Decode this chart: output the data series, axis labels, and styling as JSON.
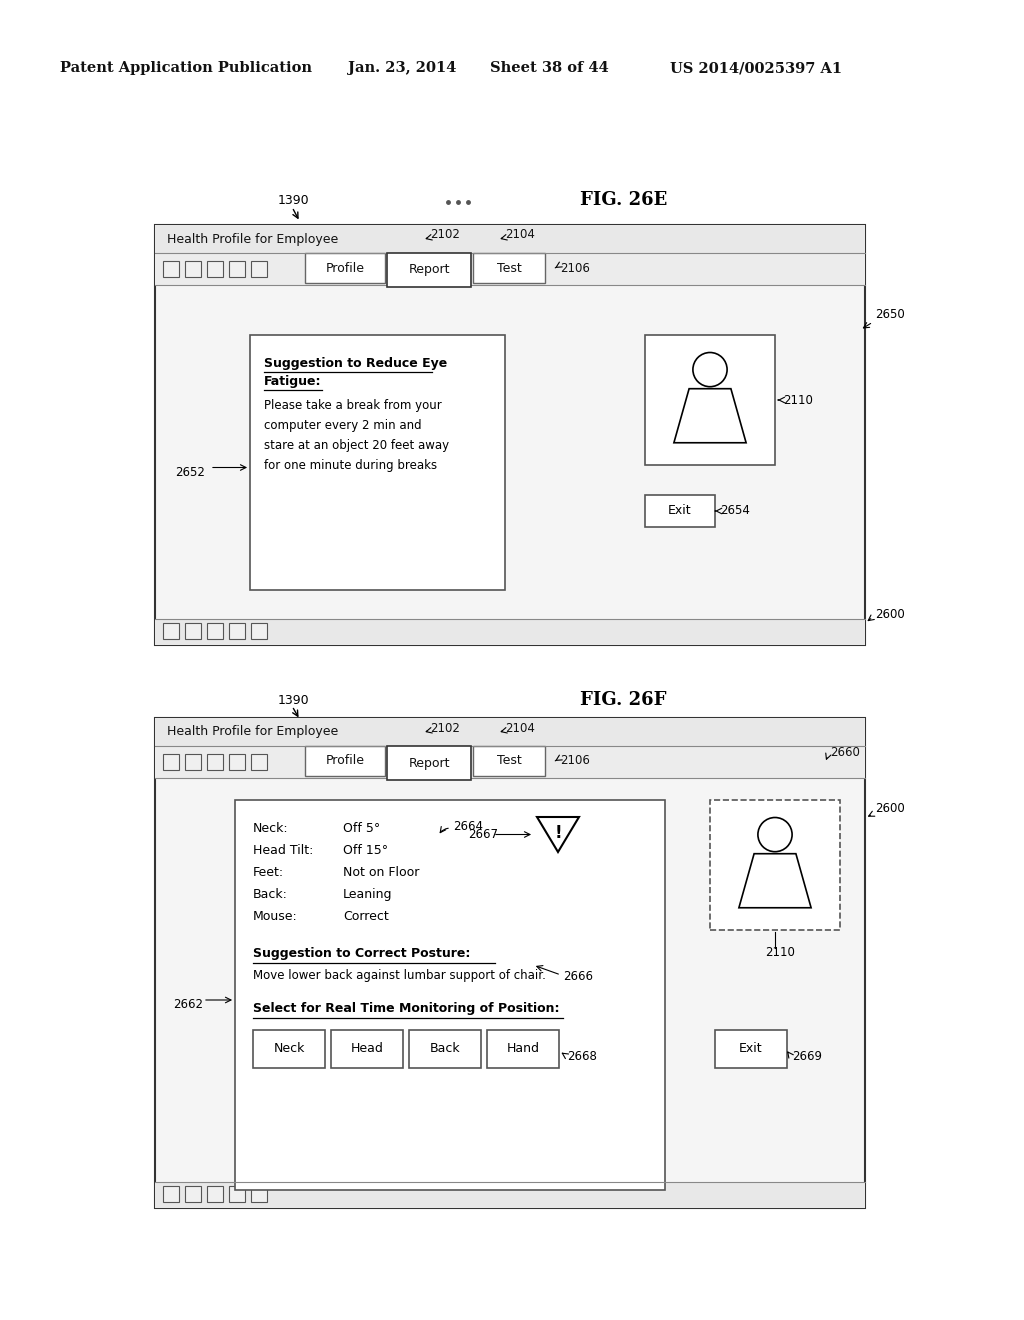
{
  "bg_color": "#ffffff",
  "header_text": "Patent Application Publication",
  "header_date": "Jan. 23, 2014",
  "header_sheet": "Sheet 38 of 44",
  "header_patent": "US 2014/0025397 A1",
  "fig1_label": "FIG. 26E",
  "fig2_label": "FIG. 26F",
  "fig1_title": "Health Profile for Employee",
  "fig2_title": "Health Profile for Employee",
  "tab_profile": "Profile",
  "tab_report": "Report",
  "tab_test": "Test",
  "label_2102": "2102",
  "label_2104": "2104",
  "label_2106": "2106",
  "label_1390": "1390",
  "label_2650": "2650",
  "label_2652": "2652",
  "label_2654": "2654",
  "label_2600_1": "2600",
  "label_2110_1": "2110",
  "label_2660": "2660",
  "label_2662": "2662",
  "label_2664": "2664",
  "label_2666": "2666",
  "label_2667": "2667",
  "label_2668": "2668",
  "label_2669": "2669",
  "label_2600_2": "2600",
  "label_2110_2": "2110",
  "suggestion_title": "Suggestion to Reduce Eye",
  "suggestion_title2": "Fatigue:",
  "suggestion_text1": "Please take a break from your",
  "suggestion_text2": "computer every 2 min and",
  "suggestion_text3": "stare at an object 20 feet away",
  "suggestion_text4": "for one minute during breaks",
  "exit_text": "Exit",
  "neck_text": "Neck:",
  "neck_val": "Off 5°",
  "headtilt_text": "Head Tilt:",
  "headtilt_val": "Off 15°",
  "feet_text": "Feet:",
  "feet_val": "Not on Floor",
  "back_text": "Back:",
  "back_val": "Leaning",
  "mouse_text": "Mouse:",
  "mouse_val": "Correct",
  "posture_title": "Suggestion to Correct Posture:",
  "posture_text": "Move lower back against lumbar support of chair.",
  "monitor_title": "Select for Real Time Monitoring of Position:",
  "btn_neck": "Neck",
  "btn_head": "Head",
  "btn_back": "Back",
  "btn_hand": "Hand",
  "exit_text2": "Exit"
}
